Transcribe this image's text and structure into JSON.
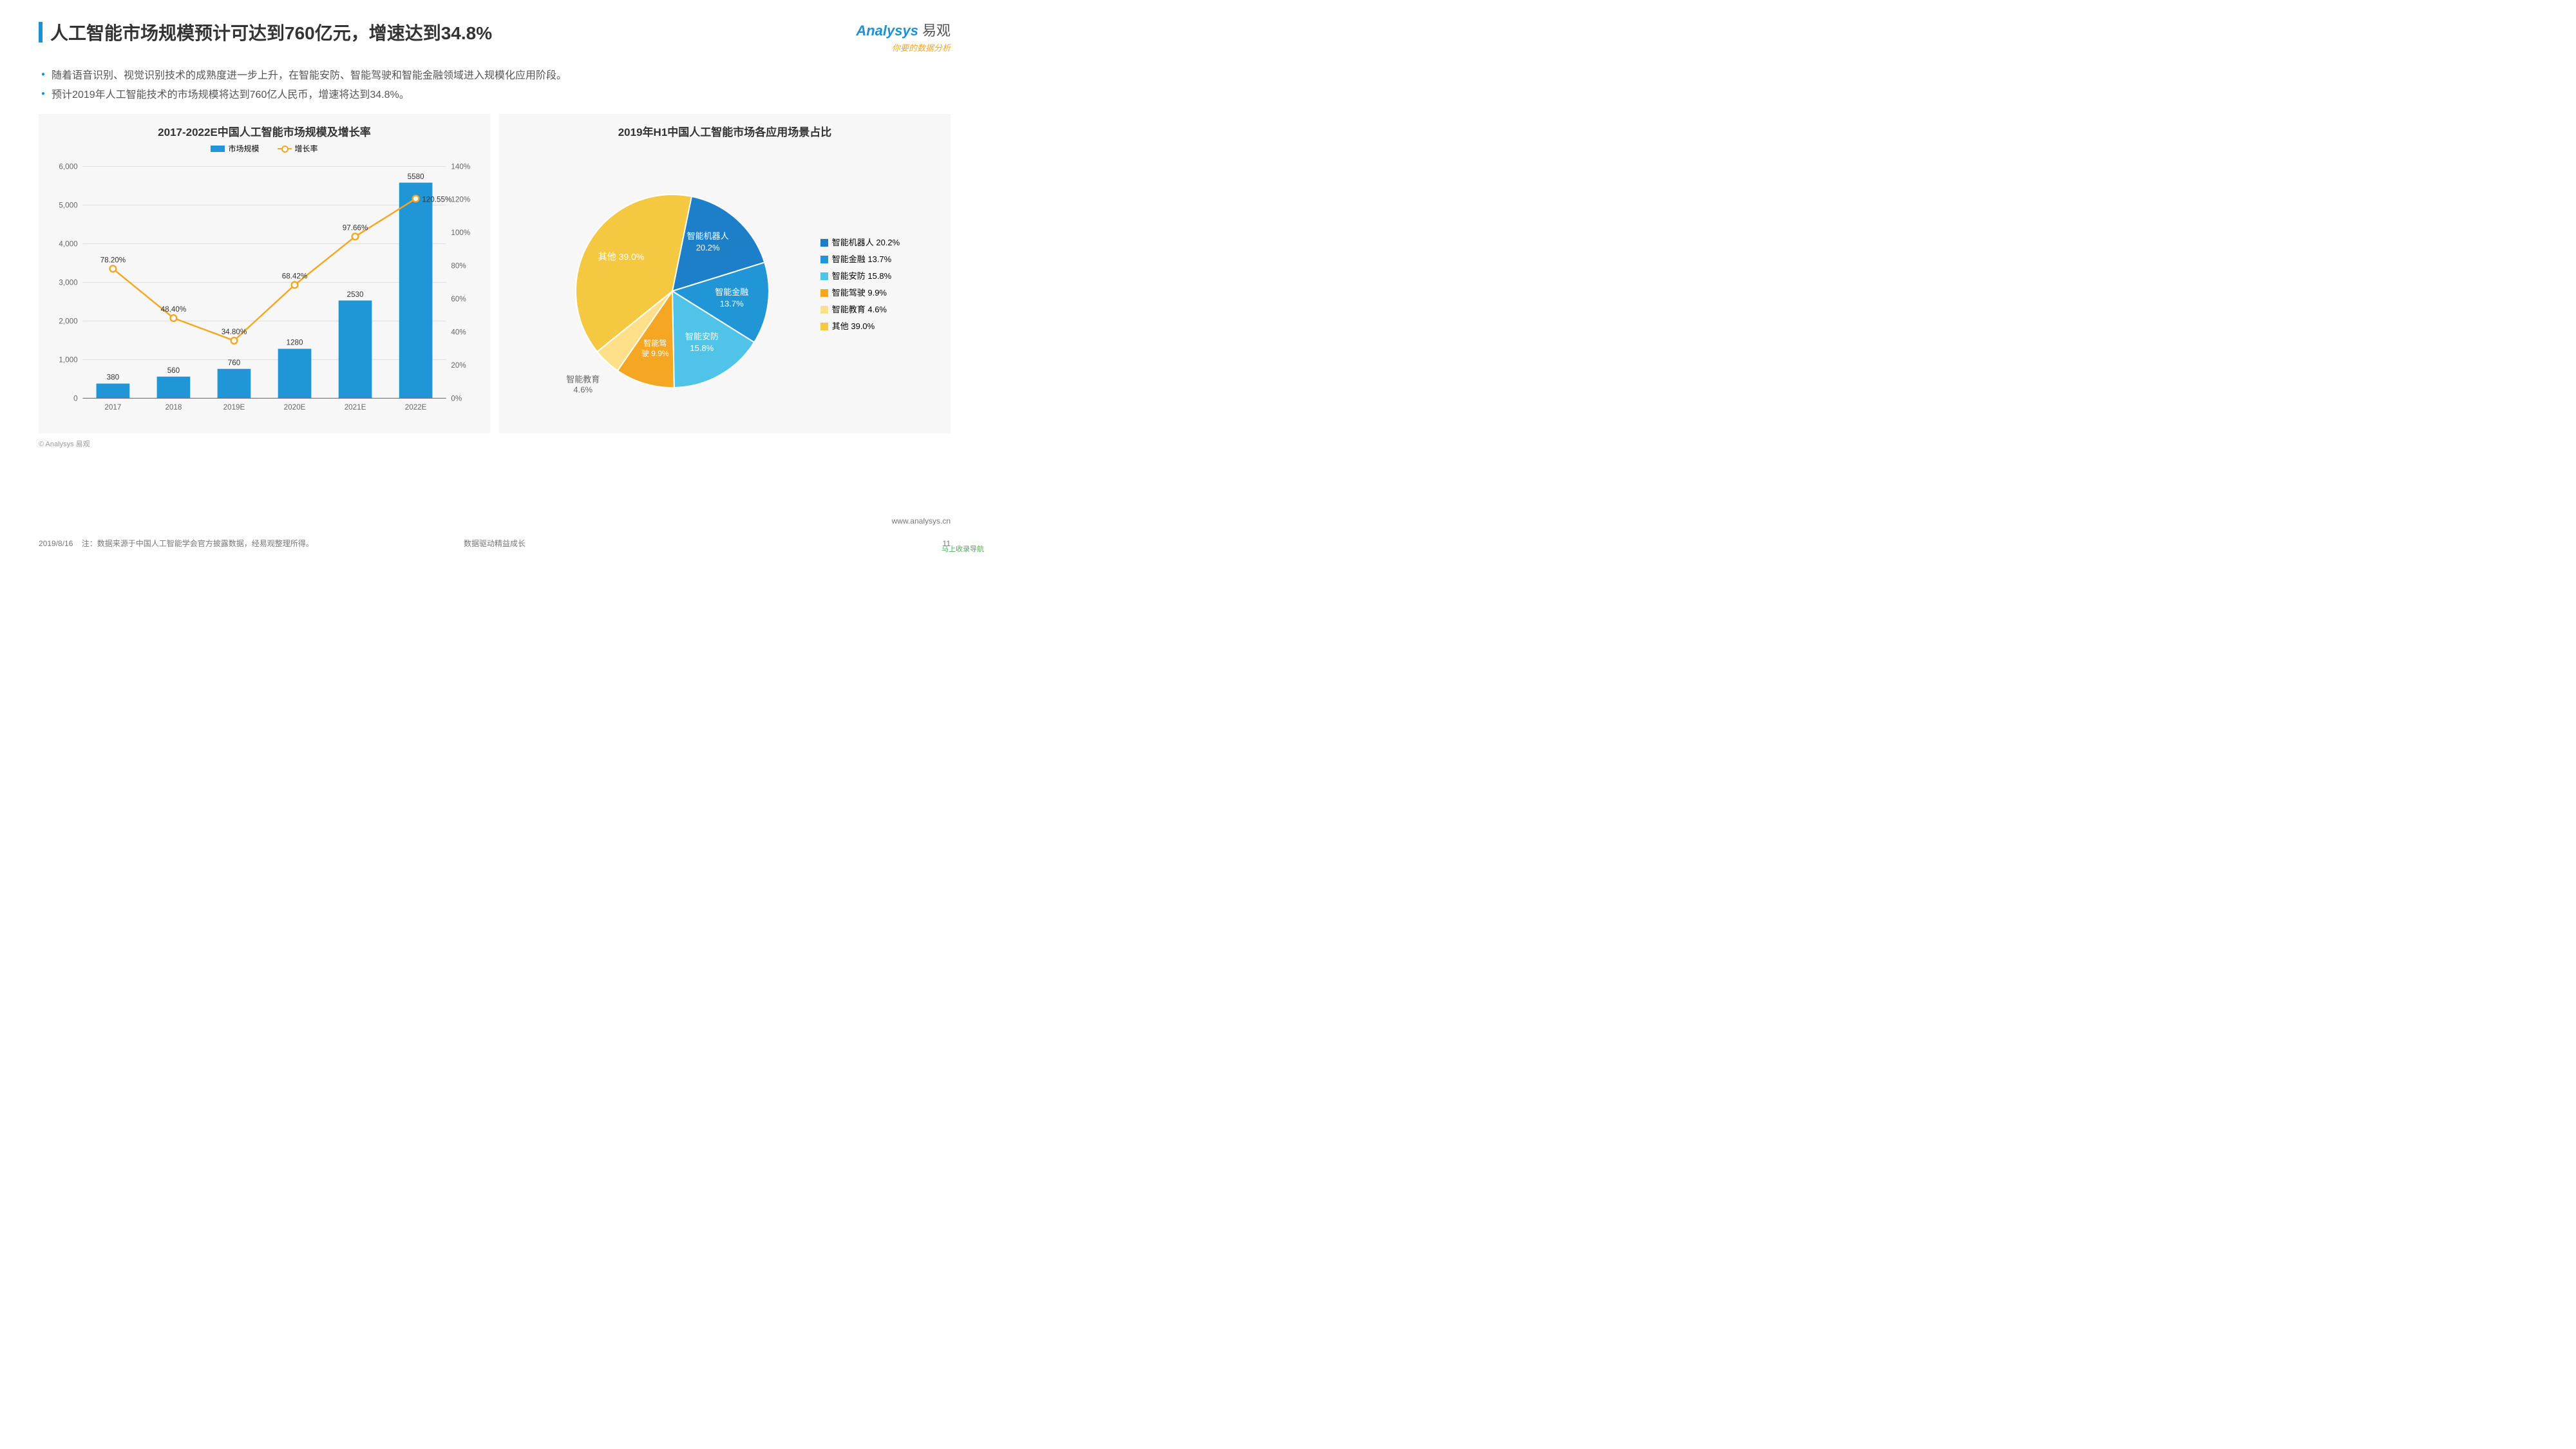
{
  "header": {
    "title": "人工智能市场规模预计可达到760亿元，增速达到34.8%",
    "logo_main": "Analysys",
    "logo_cn": "易观",
    "logo_sub": "你要的数据分析"
  },
  "bullets": [
    "随着语音识别、视觉识别技术的成熟度进一步上升，在智能安防、智能驾驶和智能金融领域进入规模化应用阶段。",
    "预计2019年人工智能技术的市场规模将达到760亿人民币，增速将达到34.8%。"
  ],
  "combo_chart": {
    "title": "2017-2022E中国人工智能市场规模及增长率",
    "legend_bar": "市场规模",
    "legend_line": "增长率",
    "categories": [
      "2017",
      "2018",
      "2019E",
      "2020E",
      "2021E",
      "2022E"
    ],
    "bars": [
      380,
      560,
      760,
      1280,
      2530,
      5580
    ],
    "line_pct": [
      78.2,
      48.4,
      34.8,
      68.42,
      97.66,
      120.55
    ],
    "y1_max": 6000,
    "y1_step": 1000,
    "y2_max": 140,
    "y2_step": 20,
    "bar_color": "#2196d6",
    "line_color": "#f5a623",
    "grid_color": "#dddddd",
    "axis_color": "#666666",
    "label_fontsize": 12
  },
  "pie_chart": {
    "title": "2019年H1中国人工智能市场各应用场景占比",
    "slices": [
      {
        "label": "智能机器人",
        "value": 20.2,
        "color": "#1e7fc9",
        "legend": "智能机器人 20.2%"
      },
      {
        "label": "智能金融",
        "value": 13.7,
        "color": "#2196d6",
        "legend": "智能金融 13.7%"
      },
      {
        "label": "智能安防",
        "value": 15.8,
        "color": "#4fc3e8",
        "legend": "智能安防 15.8%"
      },
      {
        "label": "智能驾驶",
        "value": 9.9,
        "color": "#f5a623",
        "legend": "智能驾驶 9.9%"
      },
      {
        "label": "智能教育",
        "value": 4.6,
        "color": "#ffe08a",
        "legend": "智能教育 4.6%"
      },
      {
        "label": "其他",
        "value": 39.0,
        "color": "#f5c842",
        "legend": "其他 39.0%",
        "callout": true
      }
    ],
    "pie_slice_labels": {
      "robot": {
        "l1": "智能机器人",
        "l2": "20.2%"
      },
      "finance": {
        "l1": "智能金融",
        "l2": "13.7%"
      },
      "security": {
        "l1": "智能安防",
        "l2": "15.8%"
      },
      "drive": {
        "l1": "智能驾驶",
        "l2": "9.9%",
        "combined": "智能驾驶 9.9%"
      },
      "edu": {
        "l1": "智能教育",
        "l2": "4.6%"
      },
      "other": {
        "l1": "其他 39.0%"
      }
    }
  },
  "source": "© Analysys 易观",
  "url": "www.analysys.cn",
  "footer": {
    "date": "2019/8/16",
    "note": "注：数据来源于中国人工智能学会官方披露数据，经易观整理所得。",
    "center": "数据驱动精益成长",
    "page": "11"
  },
  "stamp": "马上收录导航"
}
